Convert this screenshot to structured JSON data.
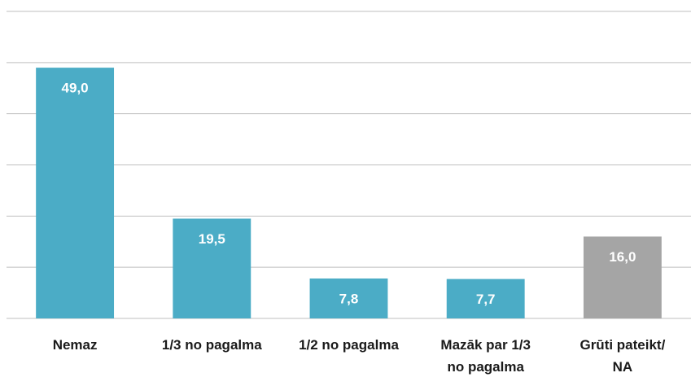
{
  "chart_data": {
    "type": "bar",
    "categories": [
      "Nemaz",
      "1/3 no pagalma",
      "1/2 no pagalma",
      "Mazāk par 1/3 no pagalma",
      "Grūti pateikt/ NA"
    ],
    "values": [
      49.0,
      19.5,
      7.8,
      7.7,
      16.0
    ],
    "value_labels": [
      "49,0",
      "19,5",
      "7,8",
      "7,7",
      "16,0"
    ],
    "colors": [
      "#4bacc6",
      "#4bacc6",
      "#4bacc6",
      "#4bacc6",
      "#a5a5a5"
    ],
    "ylim": [
      0,
      60
    ],
    "yticks": [
      0,
      10,
      20,
      30,
      40,
      50,
      60
    ],
    "grid": true
  }
}
